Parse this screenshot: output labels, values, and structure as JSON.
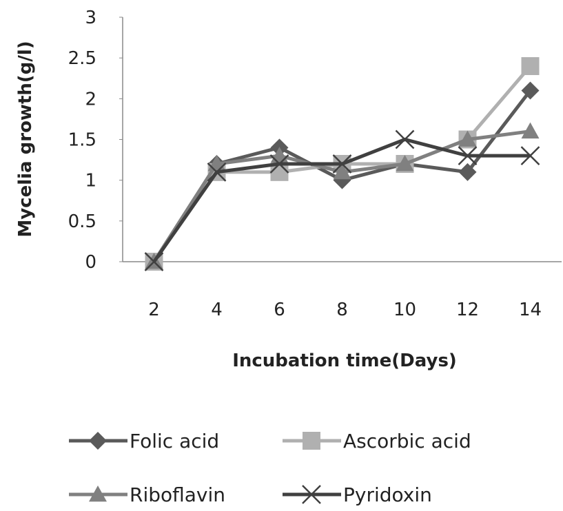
{
  "chart_data": {
    "type": "line",
    "x_label": "Incubation time(Days)",
    "y_label": "Mycelia growth(g/l)",
    "categories": [
      "2",
      "4",
      "6",
      "8",
      "10",
      "12",
      "14"
    ],
    "ylim": [
      0,
      3
    ],
    "yticks": [
      0,
      0.5,
      1,
      1.5,
      2,
      2.5,
      3
    ],
    "grid": false,
    "legend": "bottom",
    "series": [
      {
        "name": "Folic acid",
        "color": "#5a5a5a",
        "marker": "diamond",
        "values": [
          0,
          1.2,
          1.4,
          1.0,
          1.2,
          1.1,
          2.1
        ]
      },
      {
        "name": "Ascorbic acid",
        "color": "#b0b0b0",
        "marker": "square",
        "values": [
          0,
          1.1,
          1.1,
          1.2,
          1.2,
          1.5,
          2.4
        ]
      },
      {
        "name": "Riboflavin",
        "color": "#808080",
        "marker": "triangle",
        "values": [
          0,
          1.2,
          1.3,
          1.1,
          1.2,
          1.5,
          1.6
        ]
      },
      {
        "name": "Pyridoxin",
        "color": "#404040",
        "marker": "x",
        "values": [
          0,
          1.1,
          1.2,
          1.2,
          1.5,
          1.3,
          1.3
        ]
      }
    ]
  }
}
